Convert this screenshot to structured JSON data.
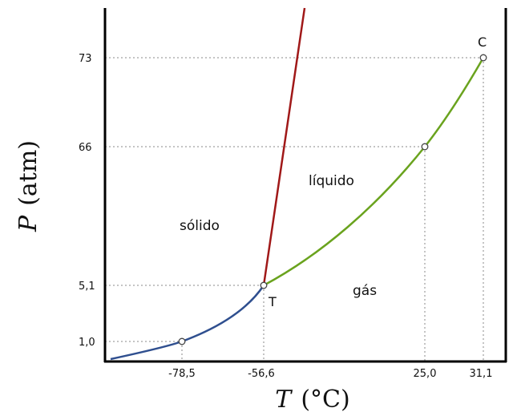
{
  "chart_data": {
    "type": "line",
    "title": "",
    "xlabel": {
      "symbol": "T",
      "unit": "(°C)"
    },
    "ylabel": {
      "symbol": "P",
      "unit": "(atm)"
    },
    "x_ticks": [
      "-78,5",
      "-56,6",
      "25,0",
      "31,1"
    ],
    "y_ticks": [
      "1,0",
      "5,1",
      "66",
      "73"
    ],
    "regions": [
      "sólido",
      "líquido",
      "gás"
    ],
    "points": [
      {
        "label": "",
        "x": "-78,5",
        "y": "1,0"
      },
      {
        "label": "T",
        "x": "-56,6",
        "y": "5,1"
      },
      {
        "label": "",
        "x": "25,0",
        "y": "66"
      },
      {
        "label": "C",
        "x": "31,1",
        "y": "73"
      }
    ],
    "series": [
      {
        "boundary": "solid-gas",
        "color": "#2f4f8f",
        "from": [
          "-78,5",
          "1,0"
        ],
        "to": [
          "-56,6",
          "5,1"
        ]
      },
      {
        "boundary": "solid-liquid",
        "color": "#a01818",
        "from": [
          "-56,6",
          "5,1"
        ],
        "to": "top"
      },
      {
        "boundary": "liquid-gas",
        "color": "#6aa31e",
        "from": [
          "-56,6",
          "5,1"
        ],
        "to": [
          "31,1",
          "73"
        ]
      }
    ],
    "grid": "dotted guide lines to marked points",
    "legend": "none"
  }
}
